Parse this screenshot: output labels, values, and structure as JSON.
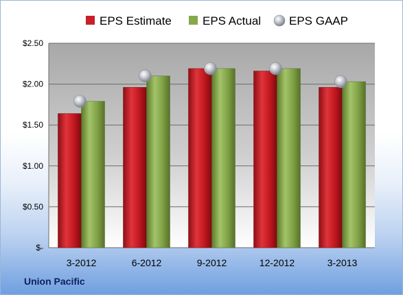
{
  "company": "Union Pacific",
  "colors": {
    "estimate": "#c8202a",
    "actual": "#86a84a",
    "gaap": "#b8bcc4"
  },
  "chart_data": {
    "type": "bar",
    "categories": [
      "3-2012",
      "6-2012",
      "9-2012",
      "12-2012",
      "3-2013"
    ],
    "series": [
      {
        "name": "EPS Estimate",
        "values": [
          1.64,
          1.96,
          2.19,
          2.16,
          1.96
        ]
      },
      {
        "name": "EPS Actual",
        "values": [
          1.79,
          2.1,
          2.19,
          2.19,
          2.03
        ]
      }
    ],
    "markers": [
      {
        "name": "EPS GAAP",
        "values": [
          1.79,
          2.1,
          2.19,
          2.19,
          2.03
        ]
      }
    ],
    "ylim": [
      0,
      2.5
    ],
    "yticks": [
      0,
      0.5,
      1.0,
      1.5,
      2.0,
      2.5
    ],
    "ytick_labels": [
      "$-",
      "$0.50",
      "$1.00",
      "$1.50",
      "$2.00",
      "$2.50"
    ],
    "legend_position": "top",
    "grid": true
  }
}
